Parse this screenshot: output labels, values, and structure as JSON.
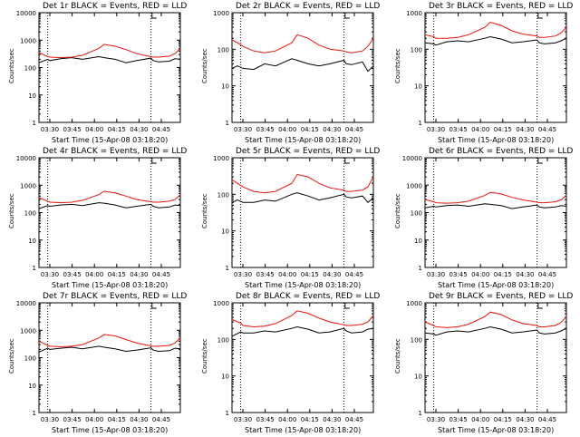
{
  "colors": {
    "events": "#000000",
    "lld": "#e8140c",
    "axis": "#000000"
  },
  "chart_data": [
    {
      "type": "line",
      "title": "Det 1r BLACK = Events, RED = LLD",
      "ylabel": "Counts/sec",
      "xlabel": "Start Time (15-Apr-08 03:18:20)",
      "x_ticks": [
        "03:30",
        "03:45",
        "04:00",
        "04:15",
        "04:30",
        "04:45"
      ],
      "y_ticks": [
        "1",
        "10",
        "100",
        "1000",
        "10000"
      ],
      "yscale": "log",
      "ylim": [
        1,
        10000
      ],
      "x": [
        0,
        8,
        10,
        20,
        30,
        40,
        55,
        60,
        70,
        80,
        90,
        103,
        105,
        110,
        120,
        125,
        130
      ],
      "series": [
        {
          "name": "Events",
          "values": [
            150,
            200,
            180,
            210,
            230,
            200,
            250,
            230,
            200,
            150,
            180,
            220,
            180,
            160,
            170,
            210,
            200
          ]
        },
        {
          "name": "LLD",
          "values": [
            350,
            250,
            240,
            230,
            240,
            280,
            500,
            700,
            600,
            450,
            320,
            250,
            240,
            240,
            260,
            320,
            500
          ]
        }
      ]
    },
    {
      "type": "line",
      "title": "Det 2r BLACK = Events, RED = LLD",
      "ylabel": "Counts/sec",
      "xlabel": "Start Time (15-Apr-08 03:18:20)",
      "x_ticks": [
        "03:30",
        "03:45",
        "04:00",
        "04:15",
        "04:30",
        "04:45"
      ],
      "y_ticks": [
        "1",
        "10",
        "100",
        "1000"
      ],
      "yscale": "log",
      "ylim": [
        1,
        1000
      ],
      "x": [
        0,
        5,
        10,
        20,
        30,
        40,
        55,
        60,
        70,
        80,
        90,
        103,
        105,
        110,
        120,
        125,
        130
      ],
      "series": [
        {
          "name": "Events",
          "values": [
            30,
            35,
            30,
            28,
            40,
            35,
            55,
            50,
            40,
            35,
            40,
            50,
            40,
            38,
            45,
            25,
            35
          ]
        },
        {
          "name": "LLD",
          "values": [
            180,
            150,
            120,
            90,
            80,
            90,
            150,
            250,
            200,
            130,
            100,
            90,
            85,
            80,
            90,
            120,
            200
          ]
        }
      ]
    },
    {
      "type": "line",
      "title": "Det 3r BLACK = Events, RED = LLD",
      "ylabel": "Counts/sec",
      "xlabel": "Start Time (15-Apr-08 03:18:20)",
      "x_ticks": [
        "03:30",
        "03:45",
        "04:00",
        "04:15",
        "04:30",
        "04:45"
      ],
      "y_ticks": [
        "1",
        "10",
        "100",
        "1000"
      ],
      "yscale": "log",
      "ylim": [
        1,
        1000
      ],
      "x": [
        0,
        8,
        10,
        20,
        30,
        40,
        55,
        60,
        70,
        80,
        90,
        103,
        105,
        110,
        120,
        125,
        130
      ],
      "series": [
        {
          "name": "Events",
          "values": [
            150,
            140,
            130,
            160,
            170,
            160,
            200,
            220,
            190,
            150,
            160,
            180,
            150,
            140,
            150,
            170,
            200
          ]
        },
        {
          "name": "LLD",
          "values": [
            250,
            220,
            200,
            200,
            210,
            250,
            400,
            550,
            450,
            320,
            260,
            230,
            210,
            210,
            230,
            280,
            400
          ]
        }
      ]
    },
    {
      "type": "line",
      "title": "Det 4r BLACK = Events, RED = LLD",
      "ylabel": "Counts/sec",
      "xlabel": "Start Time (15-Apr-08 03:18:20)",
      "x_ticks": [
        "03:30",
        "03:45",
        "04:00",
        "04:15",
        "04:30",
        "04:45"
      ],
      "y_ticks": [
        "1",
        "10",
        "100",
        "1000",
        "10000"
      ],
      "yscale": "log",
      "ylim": [
        1,
        10000
      ],
      "x": [
        0,
        8,
        10,
        20,
        30,
        40,
        55,
        60,
        70,
        80,
        90,
        103,
        105,
        110,
        120,
        125,
        130
      ],
      "series": [
        {
          "name": "Events",
          "values": [
            140,
            180,
            170,
            190,
            200,
            180,
            230,
            220,
            190,
            150,
            170,
            200,
            170,
            150,
            160,
            190,
            180
          ]
        },
        {
          "name": "LLD",
          "values": [
            350,
            260,
            240,
            230,
            240,
            280,
            450,
            600,
            520,
            400,
            300,
            250,
            240,
            240,
            260,
            300,
            450
          ]
        }
      ]
    },
    {
      "type": "line",
      "title": "Det 5r BLACK = Events, RED = LLD",
      "ylabel": "Counts/sec",
      "xlabel": "Start Time (15-Apr-08 03:18:20)",
      "x_ticks": [
        "03:30",
        "03:45",
        "04:00",
        "04:15",
        "04:30",
        "04:45"
      ],
      "y_ticks": [
        "1",
        "10",
        "100",
        "1000"
      ],
      "yscale": "log",
      "ylim": [
        1,
        1000
      ],
      "x": [
        0,
        5,
        10,
        20,
        30,
        40,
        55,
        60,
        70,
        80,
        90,
        103,
        105,
        110,
        120,
        125,
        130
      ],
      "series": [
        {
          "name": "Events",
          "values": [
            60,
            70,
            60,
            60,
            70,
            65,
            100,
            110,
            90,
            70,
            80,
            100,
            85,
            80,
            90,
            60,
            80
          ]
        },
        {
          "name": "LLD",
          "values": [
            250,
            200,
            160,
            120,
            110,
            120,
            200,
            350,
            300,
            200,
            150,
            130,
            120,
            120,
            130,
            160,
            300
          ]
        }
      ]
    },
    {
      "type": "line",
      "title": "Det 6r BLACK = Events, RED = LLD",
      "ylabel": "Counts/sec",
      "xlabel": "Start Time (15-Apr-08 03:18:20)",
      "x_ticks": [
        "03:30",
        "03:45",
        "04:00",
        "04:15",
        "04:30",
        "04:45"
      ],
      "y_ticks": [
        "1",
        "10",
        "100",
        "1000",
        "10000"
      ],
      "yscale": "log",
      "ylim": [
        1,
        10000
      ],
      "x": [
        0,
        8,
        10,
        20,
        30,
        40,
        55,
        60,
        70,
        80,
        90,
        103,
        105,
        110,
        120,
        125,
        130
      ],
      "series": [
        {
          "name": "Events",
          "values": [
            150,
            170,
            160,
            180,
            190,
            170,
            210,
            200,
            180,
            140,
            160,
            190,
            160,
            150,
            160,
            180,
            170
          ]
        },
        {
          "name": "LLD",
          "values": [
            300,
            250,
            230,
            220,
            230,
            260,
            420,
            550,
            480,
            360,
            290,
            240,
            230,
            230,
            250,
            290,
            420
          ]
        }
      ]
    },
    {
      "type": "line",
      "title": "Det 7r BLACK = Events, RED = LLD",
      "ylabel": "Counts/sec",
      "xlabel": "Start Time (15-Apr-08 03:18:20)",
      "x_ticks": [
        "03:30",
        "03:45",
        "04:00",
        "04:15",
        "04:30",
        "04:45"
      ],
      "y_ticks": [
        "1",
        "10",
        "100",
        "1000",
        "10000"
      ],
      "yscale": "log",
      "ylim": [
        1,
        10000
      ],
      "x": [
        0,
        8,
        10,
        20,
        30,
        40,
        55,
        60,
        70,
        80,
        90,
        103,
        105,
        110,
        120,
        125,
        130
      ],
      "series": [
        {
          "name": "Events",
          "values": [
            160,
            220,
            200,
            220,
            240,
            210,
            260,
            240,
            210,
            170,
            190,
            230,
            190,
            170,
            180,
            220,
            210
          ]
        },
        {
          "name": "LLD",
          "values": [
            400,
            280,
            260,
            250,
            260,
            300,
            520,
            700,
            620,
            460,
            340,
            270,
            260,
            260,
            280,
            340,
            520
          ]
        }
      ]
    },
    {
      "type": "line",
      "title": "Det 8r BLACK = Events, RED = LLD",
      "ylabel": "Counts/sec",
      "xlabel": "Start Time (15-Apr-08 03:18:20)",
      "x_ticks": [
        "03:30",
        "03:45",
        "04:00",
        "04:15",
        "04:30",
        "04:45"
      ],
      "y_ticks": [
        "1",
        "10",
        "100",
        "1000"
      ],
      "yscale": "log",
      "ylim": [
        1,
        1000
      ],
      "x": [
        0,
        8,
        10,
        20,
        30,
        40,
        55,
        60,
        70,
        80,
        90,
        103,
        105,
        110,
        120,
        125,
        130
      ],
      "series": [
        {
          "name": "Events",
          "values": [
            120,
            160,
            150,
            150,
            170,
            160,
            200,
            220,
            190,
            150,
            160,
            200,
            170,
            150,
            160,
            190,
            200
          ]
        },
        {
          "name": "LLD",
          "values": [
            350,
            280,
            240,
            220,
            230,
            270,
            450,
            600,
            520,
            380,
            300,
            250,
            240,
            240,
            260,
            300,
            450
          ]
        }
      ]
    },
    {
      "type": "line",
      "title": "Det 9r BLACK = Events, RED = LLD",
      "ylabel": "Counts/sec",
      "xlabel": "Start Time (15-Apr-08 03:18:20)",
      "x_ticks": [
        "03:30",
        "03:45",
        "04:00",
        "04:15",
        "04:30",
        "04:45"
      ],
      "y_ticks": [
        "1",
        "10",
        "100",
        "1000"
      ],
      "yscale": "log",
      "ylim": [
        1,
        1000
      ],
      "x": [
        0,
        8,
        10,
        20,
        30,
        40,
        55,
        60,
        70,
        80,
        90,
        103,
        105,
        110,
        120,
        125,
        130
      ],
      "series": [
        {
          "name": "Events",
          "values": [
            150,
            140,
            130,
            160,
            170,
            160,
            200,
            220,
            190,
            150,
            160,
            180,
            150,
            140,
            150,
            170,
            200
          ]
        },
        {
          "name": "LLD",
          "values": [
            300,
            240,
            220,
            210,
            220,
            260,
            420,
            560,
            480,
            340,
            270,
            240,
            220,
            220,
            240,
            290,
            420
          ]
        }
      ]
    }
  ]
}
